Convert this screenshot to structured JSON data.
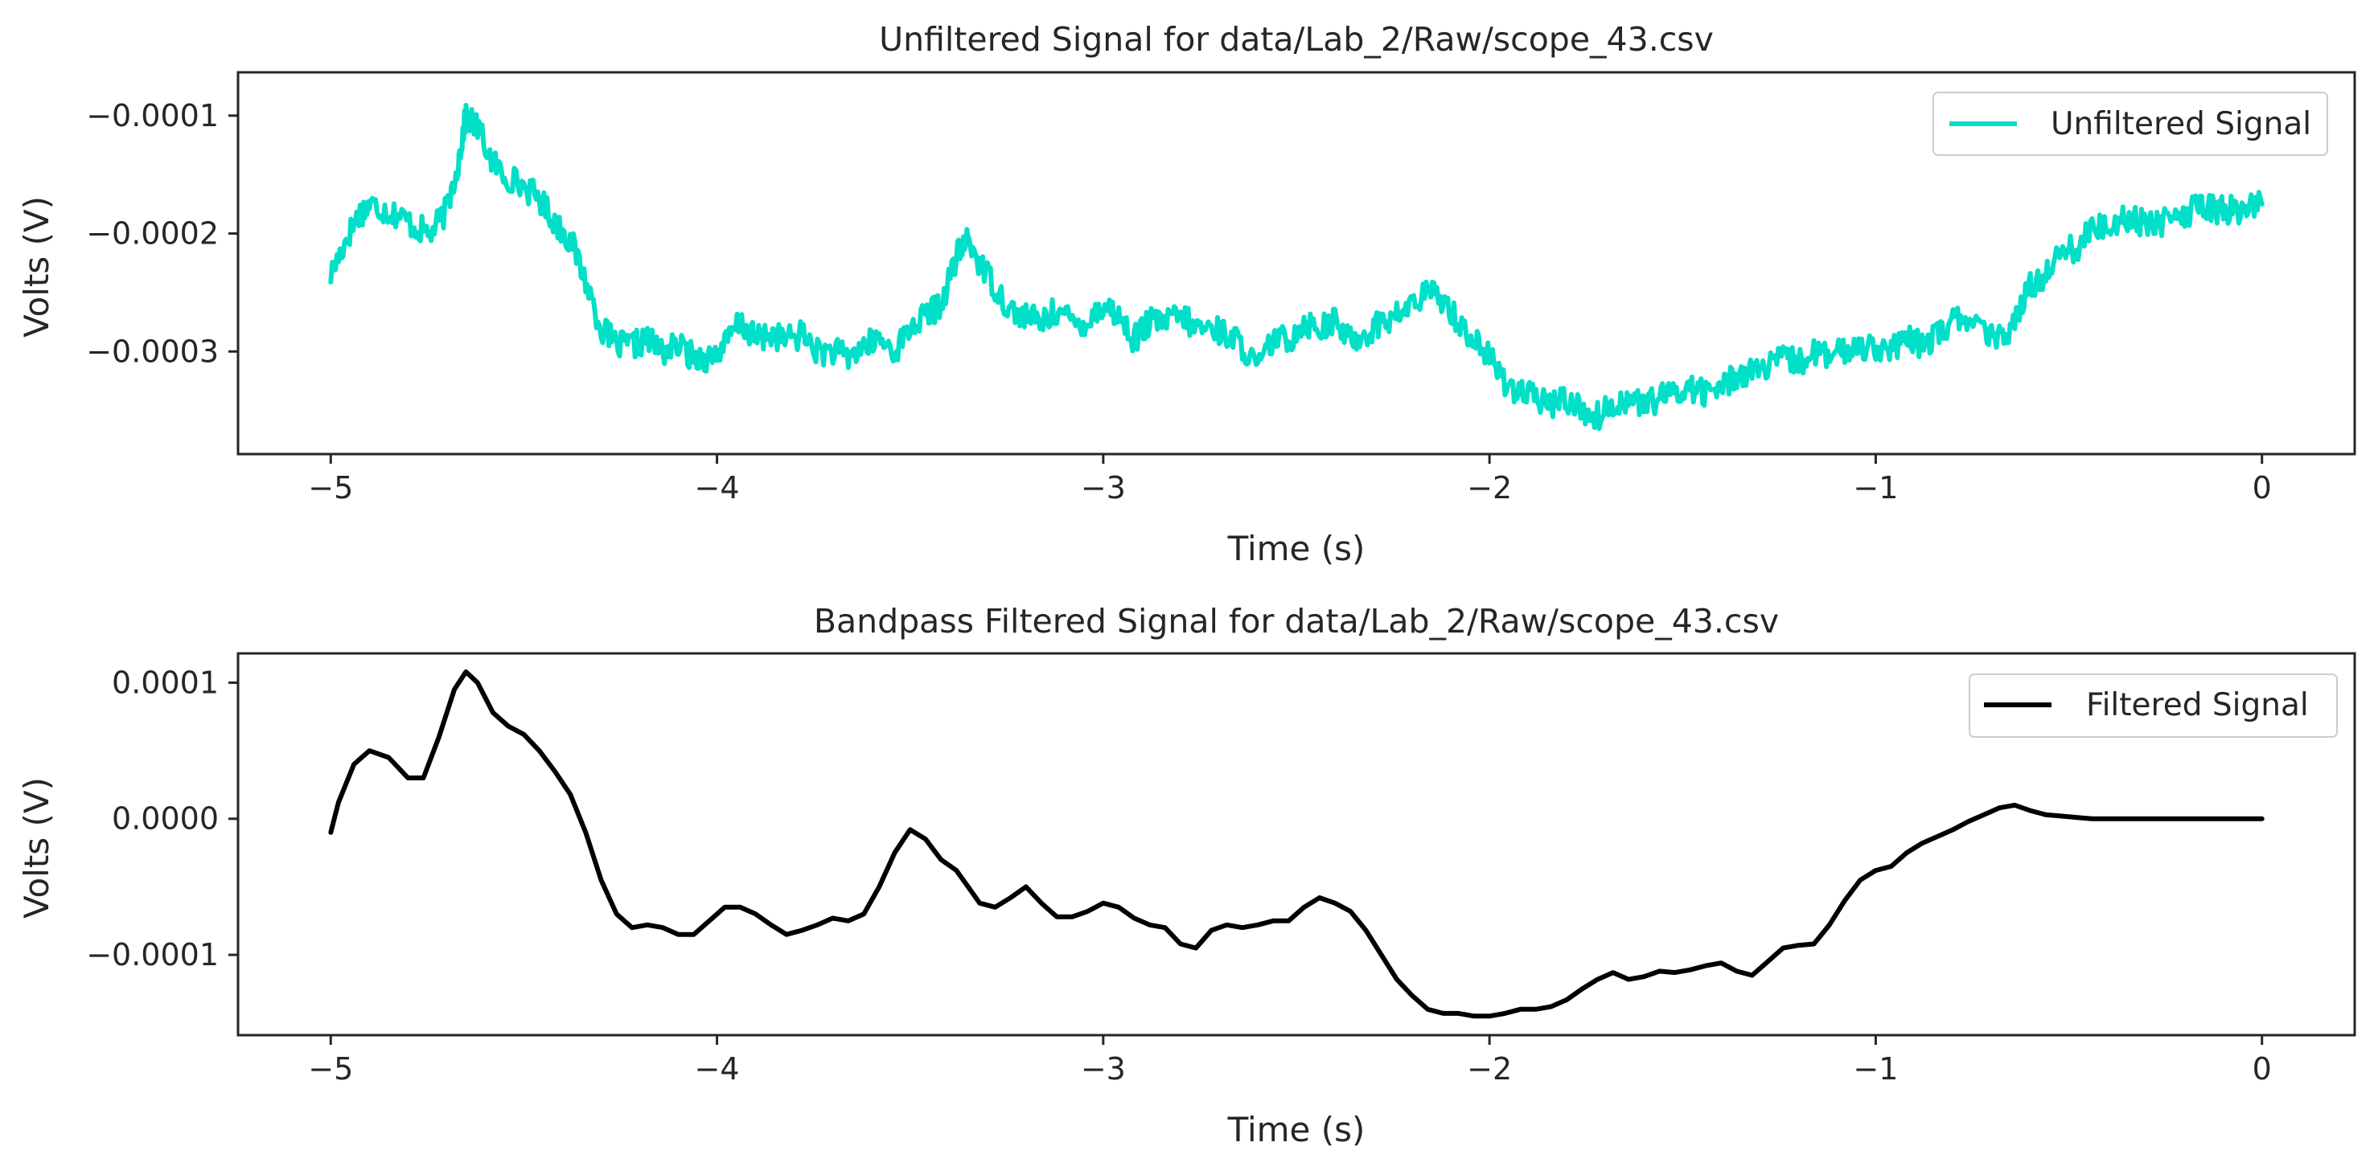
{
  "chart_data": [
    {
      "type": "line",
      "title": "Unfiltered Signal for data/Lab_2/Raw/scope_43.csv",
      "xlabel": "Time (s)",
      "ylabel": "Volts (V)",
      "xlim": [
        -5.24,
        0.24
      ],
      "ylim": [
        -0.000387,
        -6.33e-05
      ],
      "xticks": [
        -5,
        -4,
        -3,
        -2,
        -1,
        0
      ],
      "xtick_labels": [
        "−5",
        "−4",
        "−3",
        "−2",
        "−1",
        "0"
      ],
      "yticks": [
        -0.0001,
        -0.0002,
        -0.0003
      ],
      "ytick_labels": [
        "−0.0001",
        "−0.0002",
        "−0.0003"
      ],
      "grid": false,
      "legend_position": "top-right",
      "series": [
        {
          "name": "Unfiltered Signal",
          "color": "#00e0c8",
          "noisy": true,
          "x": [
            -5.0,
            -4.96,
            -4.93,
            -4.9,
            -4.86,
            -4.82,
            -4.78,
            -4.74,
            -4.7,
            -4.67,
            -4.65,
            -4.62,
            -4.58,
            -4.55,
            -4.5,
            -4.46,
            -4.42,
            -4.38,
            -4.34,
            -4.3,
            -4.26,
            -4.22,
            -4.18,
            -4.14,
            -4.1,
            -4.06,
            -4.02,
            -3.98,
            -3.94,
            -3.9,
            -3.86,
            -3.82,
            -3.78,
            -3.74,
            -3.7,
            -3.66,
            -3.62,
            -3.58,
            -3.54,
            -3.5,
            -3.46,
            -3.42,
            -3.38,
            -3.35,
            -3.32,
            -3.28,
            -3.24,
            -3.2,
            -3.16,
            -3.12,
            -3.08,
            -3.04,
            -3.0,
            -2.96,
            -2.92,
            -2.88,
            -2.84,
            -2.8,
            -2.76,
            -2.72,
            -2.68,
            -2.64,
            -2.6,
            -2.56,
            -2.52,
            -2.48,
            -2.44,
            -2.4,
            -2.36,
            -2.32,
            -2.28,
            -2.24,
            -2.2,
            -2.16,
            -2.12,
            -2.08,
            -2.04,
            -2.0,
            -1.96,
            -1.92,
            -1.88,
            -1.84,
            -1.8,
            -1.76,
            -1.72,
            -1.68,
            -1.64,
            -1.6,
            -1.56,
            -1.52,
            -1.48,
            -1.44,
            -1.4,
            -1.36,
            -1.32,
            -1.28,
            -1.24,
            -1.2,
            -1.16,
            -1.12,
            -1.08,
            -1.04,
            -1.0,
            -0.96,
            -0.92,
            -0.88,
            -0.84,
            -0.8,
            -0.76,
            -0.72,
            -0.68,
            -0.64,
            -0.6,
            -0.56,
            -0.52,
            -0.48,
            -0.44,
            -0.4,
            -0.36,
            -0.32,
            -0.28,
            -0.24,
            -0.2,
            -0.16,
            -0.12,
            -0.08,
            -0.04,
            0.0
          ],
          "y": [
            -0.000235,
            -0.000205,
            -0.000185,
            -0.000175,
            -0.00018,
            -0.000185,
            -0.000195,
            -0.0002,
            -0.00018,
            -0.00014,
            -0.0001,
            -0.00011,
            -0.00014,
            -0.00015,
            -0.00016,
            -0.00017,
            -0.00019,
            -0.000205,
            -0.00024,
            -0.00028,
            -0.000295,
            -0.000295,
            -0.00029,
            -0.0003,
            -0.000295,
            -0.000305,
            -0.000305,
            -0.000295,
            -0.000275,
            -0.00029,
            -0.000285,
            -0.00029,
            -0.000285,
            -0.0003,
            -0.0003,
            -0.000305,
            -0.000295,
            -0.00029,
            -0.0003,
            -0.00028,
            -0.00027,
            -0.00026,
            -0.00022,
            -0.000205,
            -0.000225,
            -0.000245,
            -0.000265,
            -0.00027,
            -0.000275,
            -0.000265,
            -0.000275,
            -0.000275,
            -0.00026,
            -0.00027,
            -0.00029,
            -0.000275,
            -0.000275,
            -0.00027,
            -0.00028,
            -0.00028,
            -0.000285,
            -0.000295,
            -0.000315,
            -0.00029,
            -0.00029,
            -0.000275,
            -0.00028,
            -0.000275,
            -0.00029,
            -0.000285,
            -0.000275,
            -0.00027,
            -0.00026,
            -0.00025,
            -0.000255,
            -0.000275,
            -0.00029,
            -0.000305,
            -0.000325,
            -0.000335,
            -0.00034,
            -0.000345,
            -0.00034,
            -0.00035,
            -0.000355,
            -0.000345,
            -0.00034,
            -0.000345,
            -0.00034,
            -0.000335,
            -0.00033,
            -0.000335,
            -0.00033,
            -0.00032,
            -0.000315,
            -0.000315,
            -0.000305,
            -0.00031,
            -0.0003,
            -0.000305,
            -0.0003,
            -0.000295,
            -0.000295,
            -0.0003,
            -0.00029,
            -0.000295,
            -0.000285,
            -0.000275,
            -0.00027,
            -0.000285,
            -0.00029,
            -0.000275,
            -0.000245,
            -0.000235,
            -0.00021,
            -0.000215,
            -0.000195,
            -0.000195,
            -0.000185,
            -0.00019,
            -0.00019,
            -0.00019,
            -0.000185,
            -0.000175,
            -0.00018,
            -0.00018,
            -0.00018,
            -0.000175
          ]
        }
      ]
    },
    {
      "type": "line",
      "title": "Bandpass Filtered Signal for data/Lab_2/Raw/scope_43.csv",
      "xlabel": "Time (s)",
      "ylabel": "Volts (V)",
      "xlim": [
        -5.24,
        0.24
      ],
      "ylim": [
        -0.000159,
        0.0001215
      ],
      "xticks": [
        -5,
        -4,
        -3,
        -2,
        -1,
        0
      ],
      "xtick_labels": [
        "−5",
        "−4",
        "−3",
        "−2",
        "−1",
        "0"
      ],
      "yticks": [
        0.0001,
        0.0,
        -0.0001
      ],
      "ytick_labels": [
        "0.0001",
        "0.0000",
        "−0.0001"
      ],
      "grid": false,
      "legend_position": "top-right",
      "series": [
        {
          "name": "Filtered Signal",
          "color": "#000000",
          "noisy": false,
          "x": [
            -5.0,
            -4.98,
            -4.94,
            -4.9,
            -4.85,
            -4.8,
            -4.76,
            -4.72,
            -4.68,
            -4.65,
            -4.62,
            -4.58,
            -4.54,
            -4.5,
            -4.46,
            -4.42,
            -4.38,
            -4.34,
            -4.3,
            -4.26,
            -4.22,
            -4.18,
            -4.14,
            -4.1,
            -4.06,
            -4.02,
            -3.98,
            -3.94,
            -3.9,
            -3.86,
            -3.82,
            -3.78,
            -3.74,
            -3.7,
            -3.66,
            -3.62,
            -3.58,
            -3.54,
            -3.5,
            -3.46,
            -3.42,
            -3.38,
            -3.35,
            -3.32,
            -3.28,
            -3.24,
            -3.2,
            -3.16,
            -3.12,
            -3.08,
            -3.04,
            -3.0,
            -2.96,
            -2.92,
            -2.88,
            -2.84,
            -2.8,
            -2.76,
            -2.72,
            -2.68,
            -2.64,
            -2.6,
            -2.56,
            -2.52,
            -2.48,
            -2.44,
            -2.4,
            -2.36,
            -2.32,
            -2.28,
            -2.24,
            -2.2,
            -2.16,
            -2.12,
            -2.08,
            -2.04,
            -2.0,
            -1.96,
            -1.92,
            -1.88,
            -1.84,
            -1.8,
            -1.76,
            -1.72,
            -1.68,
            -1.64,
            -1.6,
            -1.56,
            -1.52,
            -1.48,
            -1.44,
            -1.4,
            -1.36,
            -1.32,
            -1.28,
            -1.24,
            -1.2,
            -1.16,
            -1.12,
            -1.08,
            -1.04,
            -1.0,
            -0.96,
            -0.92,
            -0.88,
            -0.84,
            -0.8,
            -0.76,
            -0.72,
            -0.68,
            -0.64,
            -0.6,
            -0.56,
            -0.52,
            -0.48,
            -0.44,
            -0.4,
            -0.36,
            -0.32,
            -0.28,
            -0.24,
            -0.2,
            -0.16,
            -0.12,
            -0.08,
            -0.04,
            0.0
          ],
          "y": [
            -1e-05,
            1.2e-05,
            4e-05,
            5e-05,
            4.5e-05,
            3e-05,
            3e-05,
            6e-05,
            9.5e-05,
            0.000108,
            0.0001,
            7.8e-05,
            6.8e-05,
            6.2e-05,
            5e-05,
            3.5e-05,
            1.8e-05,
            -1e-05,
            -4.5e-05,
            -7e-05,
            -8e-05,
            -7.8e-05,
            -8e-05,
            -8.5e-05,
            -8.5e-05,
            -7.5e-05,
            -6.5e-05,
            -6.5e-05,
            -7e-05,
            -7.8e-05,
            -8.5e-05,
            -8.2e-05,
            -7.8e-05,
            -7.3e-05,
            -7.5e-05,
            -7e-05,
            -5e-05,
            -2.5e-05,
            -8e-06,
            -1.5e-05,
            -3e-05,
            -3.8e-05,
            -5e-05,
            -6.2e-05,
            -6.5e-05,
            -5.8e-05,
            -5e-05,
            -6.2e-05,
            -7.2e-05,
            -7.2e-05,
            -6.8e-05,
            -6.2e-05,
            -6.5e-05,
            -7.3e-05,
            -7.8e-05,
            -8e-05,
            -9.2e-05,
            -9.5e-05,
            -8.2e-05,
            -7.8e-05,
            -8e-05,
            -7.8e-05,
            -7.5e-05,
            -7.5e-05,
            -6.5e-05,
            -5.8e-05,
            -6.2e-05,
            -6.8e-05,
            -8.2e-05,
            -0.0001,
            -0.000118,
            -0.00013,
            -0.00014,
            -0.000143,
            -0.000143,
            -0.000145,
            -0.000145,
            -0.000143,
            -0.00014,
            -0.00014,
            -0.000138,
            -0.000133,
            -0.000125,
            -0.000118,
            -0.000113,
            -0.000118,
            -0.000116,
            -0.000112,
            -0.000113,
            -0.000111,
            -0.000108,
            -0.000106,
            -0.000112,
            -0.000115,
            -0.000105,
            -9.5e-05,
            -9.3e-05,
            -9.2e-05,
            -7.8e-05,
            -6e-05,
            -4.5e-05,
            -3.8e-05,
            -3.5e-05,
            -2.5e-05,
            -1.8e-05,
            -1.3e-05,
            -8e-06,
            -2e-06,
            3e-06,
            8e-06,
            1e-05,
            6e-06,
            3e-06,
            2e-06,
            1e-06,
            0.0,
            0.0,
            0.0,
            0.0,
            0.0,
            0.0,
            0.0,
            0.0,
            0.0,
            0.0,
            0.0,
            0.0
          ]
        }
      ]
    }
  ]
}
